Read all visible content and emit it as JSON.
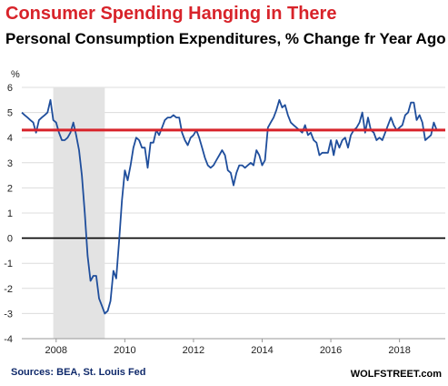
{
  "header": {
    "title": "Consumer Spending Hanging in There",
    "subtitle": "Personal Consumption Expenditures, % Change fr Year Ago"
  },
  "footer": {
    "source": "Sources: BEA, St. Louis Fed",
    "brand": "WOLFSTREET.com"
  },
  "colors": {
    "line": "#1f4e9c",
    "reference": "#d8232a",
    "zero": "#000000",
    "recession": "#e3e3e3",
    "grid": "#dcdcdc"
  },
  "chart_data": {
    "type": "line",
    "ylabel": "%",
    "ylim": [
      -4,
      6
    ],
    "xlim": [
      2007.0,
      2019.333
    ],
    "y_ticks": [
      "6",
      "5",
      "4",
      "3",
      "2",
      "1",
      "0",
      "-1",
      "-2",
      "-3",
      "-4"
    ],
    "x_ticks": [
      "2008",
      "2010",
      "2012",
      "2014",
      "2016",
      "2018"
    ],
    "grid": "horizontal",
    "zero_line": 0,
    "reference_line": 4.3,
    "recession_band": [
      "2007-12",
      "2009-06"
    ],
    "series": [
      {
        "values": [
          [
            "2007-01",
            5.0
          ],
          [
            "2007-02",
            4.9
          ],
          [
            "2007-03",
            4.8
          ],
          [
            "2007-04",
            4.7
          ],
          [
            "2007-05",
            4.6
          ],
          [
            "2007-06",
            4.2
          ],
          [
            "2007-07",
            4.7
          ],
          [
            "2007-08",
            4.8
          ],
          [
            "2007-09",
            4.9
          ],
          [
            "2007-10",
            5.0
          ],
          [
            "2007-11",
            5.5
          ],
          [
            "2007-12",
            4.7
          ],
          [
            "2008-01",
            4.6
          ],
          [
            "2008-02",
            4.2
          ],
          [
            "2008-03",
            3.9
          ],
          [
            "2008-04",
            3.9
          ],
          [
            "2008-05",
            4.0
          ],
          [
            "2008-06",
            4.2
          ],
          [
            "2008-07",
            4.6
          ],
          [
            "2008-08",
            4.1
          ],
          [
            "2008-09",
            3.5
          ],
          [
            "2008-10",
            2.5
          ],
          [
            "2008-11",
            1.0
          ],
          [
            "2008-12",
            -0.7
          ],
          [
            "2009-01",
            -1.7
          ],
          [
            "2009-02",
            -1.5
          ],
          [
            "2009-03",
            -1.5
          ],
          [
            "2009-04",
            -2.4
          ],
          [
            "2009-05",
            -2.7
          ],
          [
            "2009-06",
            -3.0
          ],
          [
            "2009-07",
            -2.9
          ],
          [
            "2009-08",
            -2.5
          ],
          [
            "2009-09",
            -1.3
          ],
          [
            "2009-10",
            -1.6
          ],
          [
            "2009-11",
            -0.1
          ],
          [
            "2009-12",
            1.5
          ],
          [
            "2010-01",
            2.7
          ],
          [
            "2010-02",
            2.3
          ],
          [
            "2010-03",
            2.9
          ],
          [
            "2010-04",
            3.6
          ],
          [
            "2010-05",
            4.0
          ],
          [
            "2010-06",
            3.9
          ],
          [
            "2010-07",
            3.6
          ],
          [
            "2010-08",
            3.6
          ],
          [
            "2010-09",
            2.8
          ],
          [
            "2010-10",
            3.8
          ],
          [
            "2010-11",
            3.8
          ],
          [
            "2010-12",
            4.3
          ],
          [
            "2011-01",
            4.1
          ],
          [
            "2011-02",
            4.4
          ],
          [
            "2011-03",
            4.7
          ],
          [
            "2011-04",
            4.8
          ],
          [
            "2011-05",
            4.8
          ],
          [
            "2011-06",
            4.9
          ],
          [
            "2011-07",
            4.8
          ],
          [
            "2011-08",
            4.8
          ],
          [
            "2011-09",
            4.2
          ],
          [
            "2011-10",
            3.9
          ],
          [
            "2011-11",
            3.7
          ],
          [
            "2011-12",
            4.0
          ],
          [
            "2012-01",
            4.1
          ],
          [
            "2012-02",
            4.3
          ],
          [
            "2012-03",
            4.0
          ],
          [
            "2012-04",
            3.6
          ],
          [
            "2012-05",
            3.2
          ],
          [
            "2012-06",
            2.9
          ],
          [
            "2012-07",
            2.8
          ],
          [
            "2012-08",
            2.9
          ],
          [
            "2012-09",
            3.1
          ],
          [
            "2012-10",
            3.3
          ],
          [
            "2012-11",
            3.5
          ],
          [
            "2012-12",
            3.3
          ],
          [
            "2013-01",
            2.7
          ],
          [
            "2013-02",
            2.6
          ],
          [
            "2013-03",
            2.1
          ],
          [
            "2013-04",
            2.6
          ],
          [
            "2013-05",
            2.9
          ],
          [
            "2013-06",
            2.9
          ],
          [
            "2013-07",
            2.8
          ],
          [
            "2013-08",
            2.9
          ],
          [
            "2013-09",
            3.0
          ],
          [
            "2013-10",
            2.9
          ],
          [
            "2013-11",
            3.5
          ],
          [
            "2013-12",
            3.3
          ],
          [
            "2014-01",
            2.9
          ],
          [
            "2014-02",
            3.1
          ],
          [
            "2014-03",
            4.4
          ],
          [
            "2014-04",
            4.6
          ],
          [
            "2014-05",
            4.8
          ],
          [
            "2014-06",
            5.1
          ],
          [
            "2014-07",
            5.5
          ],
          [
            "2014-08",
            5.2
          ],
          [
            "2014-09",
            5.3
          ],
          [
            "2014-10",
            4.9
          ],
          [
            "2014-11",
            4.6
          ],
          [
            "2014-12",
            4.5
          ],
          [
            "2015-01",
            4.4
          ],
          [
            "2015-02",
            4.3
          ],
          [
            "2015-03",
            4.2
          ],
          [
            "2015-04",
            4.5
          ],
          [
            "2015-05",
            4.1
          ],
          [
            "2015-06",
            4.2
          ],
          [
            "2015-07",
            3.9
          ],
          [
            "2015-08",
            3.8
          ],
          [
            "2015-09",
            3.3
          ],
          [
            "2015-10",
            3.4
          ],
          [
            "2015-11",
            3.4
          ],
          [
            "2015-12",
            3.4
          ],
          [
            "2016-01",
            3.9
          ],
          [
            "2016-02",
            3.3
          ],
          [
            "2016-03",
            3.9
          ],
          [
            "2016-04",
            3.6
          ],
          [
            "2016-05",
            3.9
          ],
          [
            "2016-06",
            4.0
          ],
          [
            "2016-07",
            3.6
          ],
          [
            "2016-08",
            4.1
          ],
          [
            "2016-09",
            4.3
          ],
          [
            "2016-10",
            4.4
          ],
          [
            "2016-11",
            4.6
          ],
          [
            "2016-12",
            5.0
          ],
          [
            "2017-01",
            4.2
          ],
          [
            "2017-02",
            4.8
          ],
          [
            "2017-03",
            4.3
          ],
          [
            "2017-04",
            4.2
          ],
          [
            "2017-05",
            3.9
          ],
          [
            "2017-06",
            4.0
          ],
          [
            "2017-07",
            3.9
          ],
          [
            "2017-08",
            4.2
          ],
          [
            "2017-09",
            4.5
          ],
          [
            "2017-10",
            4.8
          ],
          [
            "2017-11",
            4.5
          ],
          [
            "2017-12",
            4.3
          ],
          [
            "2018-01",
            4.4
          ],
          [
            "2018-02",
            4.5
          ],
          [
            "2018-03",
            4.9
          ],
          [
            "2018-04",
            5.0
          ],
          [
            "2018-05",
            5.4
          ],
          [
            "2018-06",
            5.4
          ],
          [
            "2018-07",
            4.7
          ],
          [
            "2018-08",
            4.9
          ],
          [
            "2018-09",
            4.6
          ],
          [
            "2018-10",
            3.9
          ],
          [
            "2018-11",
            4.0
          ],
          [
            "2018-12",
            4.1
          ],
          [
            "2019-01",
            4.6
          ],
          [
            "2019-02",
            4.3
          ]
        ]
      }
    ]
  }
}
